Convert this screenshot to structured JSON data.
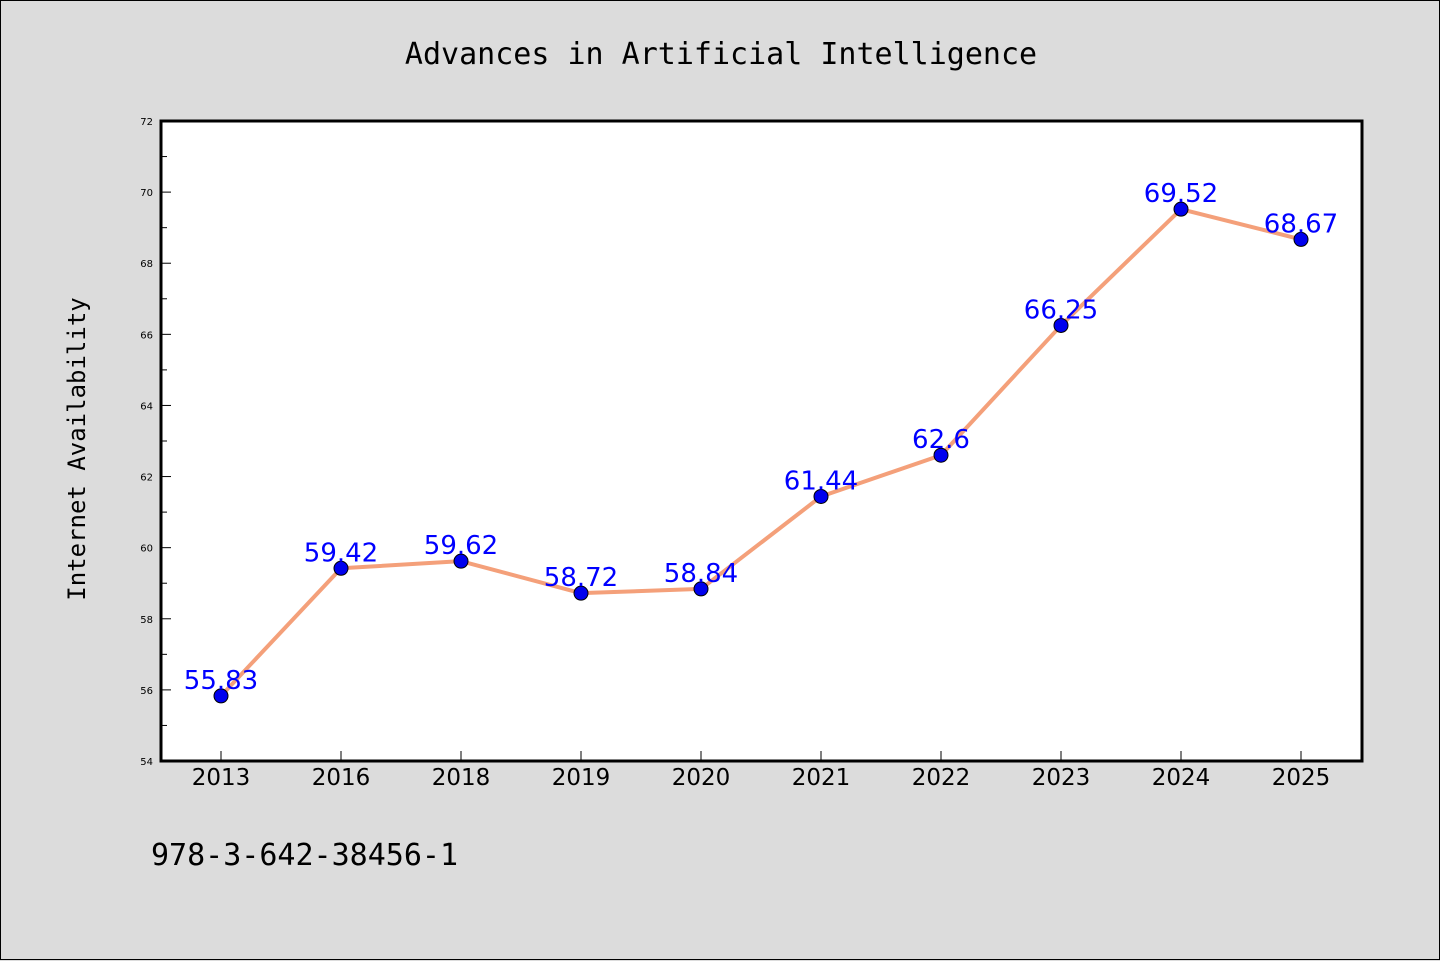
{
  "chart_data": {
    "type": "line",
    "title": "Advances in Artificial Intelligence",
    "xlabel": "",
    "ylabel": "Internet Availability",
    "categories": [
      "2013",
      "2016",
      "2018",
      "2019",
      "2020",
      "2021",
      "2022",
      "2023",
      "2024",
      "2025"
    ],
    "series": [
      {
        "values": [
          55.83,
          59.42,
          59.62,
          58.72,
          58.84,
          61.44,
          62.6,
          66.25,
          69.52,
          68.67
        ],
        "data_labels": [
          "55.83",
          "59.42",
          "59.62",
          "58.72",
          "58.84",
          "61.44",
          "62.6",
          "66.25",
          "69.52",
          "68.67"
        ],
        "line_color": "#f4a07a",
        "marker_color": "#0000ee"
      }
    ],
    "ylim": [
      54,
      72
    ],
    "yticks": [
      "54",
      "56",
      "58",
      "60",
      "62",
      "64",
      "66",
      "68",
      "70",
      "72"
    ],
    "grid": false,
    "legend": "none",
    "label_color": "#0000ff"
  },
  "footer": {
    "isbn": "978-3-642-38456-1"
  }
}
